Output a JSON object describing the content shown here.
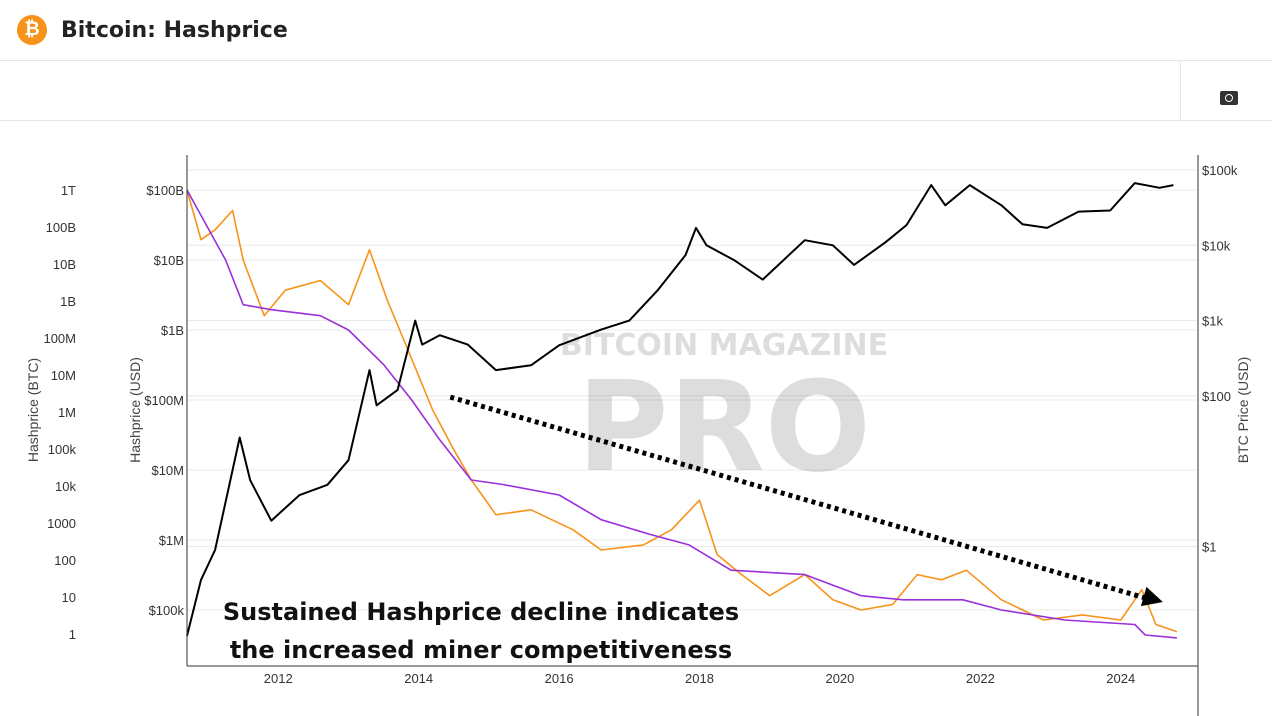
{
  "header": {
    "title": "Bitcoin: Hashprice",
    "logo_icon": "bitcoin-icon"
  },
  "toolbar": {
    "camera_icon": "camera-icon"
  },
  "watermark": {
    "line1": "BITCOIN MAGAZINE",
    "line2": "PRO"
  },
  "annotation": {
    "line1": "Sustained Hashprice decline indicates",
    "line2": "the increased miner competitiveness"
  },
  "chart_data": {
    "type": "line",
    "title": "Bitcoin: Hashprice",
    "x_ticks": [
      "2012",
      "2014",
      "2016",
      "2018",
      "2020",
      "2022",
      "2024"
    ],
    "xlim": [
      2010.7,
      2025.1
    ],
    "grid": true,
    "axes": {
      "left_btc": {
        "label": "Hashprice (BTC)",
        "scale": "log",
        "ticks": [
          "1T",
          "100B",
          "10B",
          "1B",
          "100M",
          "10M",
          "1M",
          "100k",
          "10k",
          "1000",
          "100",
          "10",
          "1"
        ]
      },
      "left_usd": {
        "label": "Hashprice (USD)",
        "scale": "log",
        "ticks": [
          "$100B",
          "$10B",
          "$1B",
          "$100M",
          "$10M",
          "$1M",
          "$100k"
        ]
      },
      "right": {
        "label": "BTC Price (USD)",
        "scale": "log",
        "ticks": [
          "$100k",
          "$10k",
          "$1k",
          "$100",
          "$1"
        ]
      }
    },
    "colors": {
      "btc_price": "#000000",
      "hashprice_usd": "#f7931a",
      "hashprice_btc": "#9b30d9"
    },
    "series": [
      {
        "axis": "right",
        "color": "#000000",
        "points": [
          [
            2010.7,
            0.065
          ],
          [
            2010.9,
            0.36
          ],
          [
            2011.1,
            0.9
          ],
          [
            2011.45,
            28
          ],
          [
            2011.6,
            7.6
          ],
          [
            2011.9,
            2.2
          ],
          [
            2012.3,
            4.8
          ],
          [
            2012.7,
            6.6
          ],
          [
            2013.0,
            14
          ],
          [
            2013.3,
            220
          ],
          [
            2013.4,
            75
          ],
          [
            2013.7,
            120
          ],
          [
            2013.95,
            1000
          ],
          [
            2014.05,
            480
          ],
          [
            2014.3,
            640
          ],
          [
            2014.7,
            480
          ],
          [
            2015.1,
            220
          ],
          [
            2015.6,
            255
          ],
          [
            2016.0,
            470
          ],
          [
            2016.6,
            760
          ],
          [
            2017.0,
            1000
          ],
          [
            2017.4,
            2500
          ],
          [
            2017.8,
            7400
          ],
          [
            2017.95,
            17000
          ],
          [
            2018.1,
            10000
          ],
          [
            2018.5,
            6300
          ],
          [
            2018.9,
            3500
          ],
          [
            2019.5,
            11700
          ],
          [
            2019.9,
            10000
          ],
          [
            2020.2,
            5500
          ],
          [
            2020.65,
            11000
          ],
          [
            2020.95,
            18600
          ],
          [
            2021.3,
            63000
          ],
          [
            2021.5,
            34000
          ],
          [
            2021.85,
            63000
          ],
          [
            2022.3,
            34000
          ],
          [
            2022.6,
            19000
          ],
          [
            2022.95,
            17000
          ],
          [
            2023.4,
            28000
          ],
          [
            2023.85,
            29000
          ],
          [
            2024.2,
            67000
          ],
          [
            2024.55,
            58000
          ],
          [
            2024.75,
            63000
          ]
        ]
      },
      {
        "axis": "left_usd",
        "color": "#f7931a",
        "points": [
          [
            2010.7,
            100000000000.0
          ],
          [
            2010.9,
            19500000000.0
          ],
          [
            2011.1,
            27000000000.0
          ],
          [
            2011.35,
            51000000000.0
          ],
          [
            2011.5,
            10000000000.0
          ],
          [
            2011.8,
            1600000000.0
          ],
          [
            2012.1,
            3700000000.0
          ],
          [
            2012.6,
            5100000000.0
          ],
          [
            2013.0,
            2300000000.0
          ],
          [
            2013.3,
            14000000000.0
          ],
          [
            2013.55,
            2700000000.0
          ],
          [
            2013.85,
            510000000.0
          ],
          [
            2014.2,
            72000000.0
          ],
          [
            2014.5,
            19500000.0
          ],
          [
            2014.75,
            7200000.0
          ],
          [
            2015.1,
            2300000.0
          ],
          [
            2015.6,
            2700000.0
          ],
          [
            2016.2,
            1400000.0
          ],
          [
            2016.6,
            720000.0
          ],
          [
            2017.2,
            850000.0
          ],
          [
            2017.6,
            1400000.0
          ],
          [
            2018.0,
            3700000.0
          ],
          [
            2018.25,
            620000.0
          ],
          [
            2018.6,
            320000.0
          ],
          [
            2019.0,
            160000.0
          ],
          [
            2019.5,
            320000.0
          ],
          [
            2019.9,
            140000.0
          ],
          [
            2020.3,
            100000.0
          ],
          [
            2020.75,
            120000.0
          ],
          [
            2021.1,
            320000.0
          ],
          [
            2021.45,
            270000.0
          ],
          [
            2021.8,
            370000.0
          ],
          [
            2022.3,
            140000.0
          ],
          [
            2022.9,
            72000.0
          ],
          [
            2023.45,
            85000.0
          ],
          [
            2024.0,
            72000.0
          ],
          [
            2024.3,
            195000.0
          ],
          [
            2024.5,
            62000.0
          ],
          [
            2024.8,
            49000.0
          ]
        ]
      },
      {
        "axis": "left_usd",
        "color": "#9b30d9",
        "points": [
          [
            2010.7,
            100000000000.0
          ],
          [
            2011.25,
            10000000000.0
          ],
          [
            2011.5,
            2300000000.0
          ],
          [
            2011.9,
            1950000000.0
          ],
          [
            2012.6,
            1600000000.0
          ],
          [
            2013.0,
            1000000000.0
          ],
          [
            2013.5,
            320000000.0
          ],
          [
            2013.9,
            100000000.0
          ],
          [
            2014.3,
            27000000.0
          ],
          [
            2014.75,
            7200000.0
          ],
          [
            2015.2,
            6200000.0
          ],
          [
            2016.0,
            4400000.0
          ],
          [
            2016.6,
            1950000.0
          ],
          [
            2017.3,
            1200000.0
          ],
          [
            2017.85,
            850000.0
          ],
          [
            2018.45,
            370000.0
          ],
          [
            2019.5,
            320000.0
          ],
          [
            2020.3,
            160000.0
          ],
          [
            2020.9,
            140000.0
          ],
          [
            2021.75,
            140000.0
          ],
          [
            2022.3,
            100000.0
          ],
          [
            2023.2,
            72000.0
          ],
          [
            2024.2,
            62000.0
          ],
          [
            2024.35,
            44000.0
          ],
          [
            2024.8,
            40000.0
          ]
        ]
      }
    ],
    "trend_arrow": {
      "from": [
        2014.45,
        110000000.0
      ],
      "to": [
        2024.6,
        130000.0
      ],
      "style": "dotted"
    }
  }
}
